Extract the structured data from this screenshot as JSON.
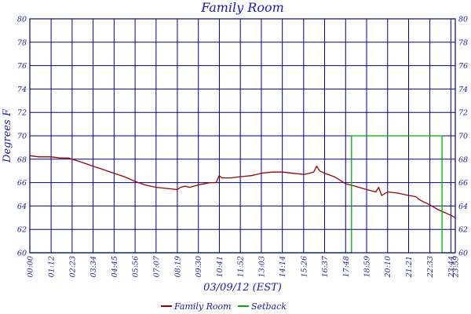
{
  "chart_data": {
    "type": "line",
    "title": "Family Room",
    "xlabel": "03/09/12 (EST)",
    "ylabel": "Degrees F",
    "ylim": [
      60,
      80
    ],
    "yticks": [
      60,
      62,
      64,
      66,
      68,
      70,
      72,
      74,
      76,
      78,
      80
    ],
    "xlim_minutes": [
      0,
      1439
    ],
    "xticks": [
      "00:00",
      "01:12",
      "02:23",
      "03:34",
      "04:45",
      "05:56",
      "07:07",
      "08:19",
      "09:30",
      "10:41",
      "11:52",
      "13:03",
      "14:14",
      "15:26",
      "16:37",
      "17:48",
      "18:59",
      "20:10",
      "21:21",
      "22:33",
      "23:44",
      "23:59"
    ],
    "grid": true,
    "legend_position": "bottom",
    "colors": {
      "grid": "#000080",
      "text": "#1a1aa8",
      "family_room": "#9b0000",
      "setback": "#00b000"
    },
    "series": [
      {
        "name": "Family Room",
        "color": "#9b0000",
        "points": [
          [
            "00:00",
            68.3
          ],
          [
            "00:30",
            68.2
          ],
          [
            "01:12",
            68.2
          ],
          [
            "01:45",
            68.1
          ],
          [
            "02:10",
            68.1
          ],
          [
            "02:23",
            68.0
          ],
          [
            "03:00",
            67.7
          ],
          [
            "03:34",
            67.4
          ],
          [
            "04:10",
            67.1
          ],
          [
            "04:45",
            66.8
          ],
          [
            "05:20",
            66.5
          ],
          [
            "05:56",
            66.1
          ],
          [
            "06:30",
            65.8
          ],
          [
            "07:07",
            65.6
          ],
          [
            "07:45",
            65.5
          ],
          [
            "08:19",
            65.4
          ],
          [
            "08:30",
            65.6
          ],
          [
            "08:45",
            65.7
          ],
          [
            "09:00",
            65.6
          ],
          [
            "09:30",
            65.8
          ],
          [
            "10:10",
            66.0
          ],
          [
            "10:30",
            66.0
          ],
          [
            "10:40",
            66.6
          ],
          [
            "10:50",
            66.4
          ],
          [
            "11:20",
            66.4
          ],
          [
            "11:52",
            66.5
          ],
          [
            "12:30",
            66.6
          ],
          [
            "13:03",
            66.8
          ],
          [
            "13:40",
            66.9
          ],
          [
            "14:14",
            66.9
          ],
          [
            "14:50",
            66.8
          ],
          [
            "15:26",
            66.7
          ],
          [
            "15:45",
            66.8
          ],
          [
            "16:00",
            66.9
          ],
          [
            "16:10",
            67.4
          ],
          [
            "16:20",
            67.0
          ],
          [
            "16:37",
            66.8
          ],
          [
            "17:10",
            66.5
          ],
          [
            "17:48",
            65.9
          ],
          [
            "18:20",
            65.7
          ],
          [
            "18:59",
            65.4
          ],
          [
            "19:30",
            65.2
          ],
          [
            "19:40",
            65.6
          ],
          [
            "19:50",
            64.9
          ],
          [
            "20:10",
            65.2
          ],
          [
            "20:45",
            65.1
          ],
          [
            "21:21",
            64.9
          ],
          [
            "21:45",
            64.8
          ],
          [
            "22:00",
            64.5
          ],
          [
            "22:33",
            64.1
          ],
          [
            "23:00",
            63.7
          ],
          [
            "23:44",
            63.2
          ],
          [
            "23:59",
            63.0
          ]
        ]
      },
      {
        "name": "Setback",
        "color": "#00b000",
        "points": [
          [
            "00:00",
            60
          ],
          [
            "18:08",
            60
          ],
          [
            "18:08",
            70
          ],
          [
            "23:14",
            70
          ],
          [
            "23:14",
            60
          ],
          [
            "23:59",
            60
          ]
        ]
      }
    ]
  }
}
